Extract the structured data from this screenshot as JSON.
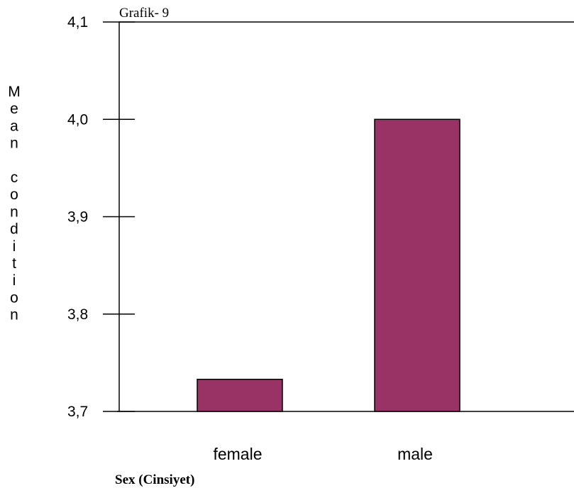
{
  "chart_data": {
    "type": "bar",
    "title": "Grafik- 9",
    "xlabel": "Sex (Cinsiyet)",
    "ylabel": "Mean condition",
    "categories": [
      "female",
      "male"
    ],
    "values": [
      3.733,
      4.0
    ],
    "ylim": [
      3.7,
      4.1
    ],
    "yticks": [
      3.7,
      3.8,
      3.9,
      4.0,
      4.1
    ],
    "ytick_labels": [
      "3,7",
      "3,8",
      "3,9",
      "4,0",
      "4,1"
    ],
    "grid": false,
    "legend": "none",
    "bar_color": "#993366",
    "bar_edge_color": "#000000"
  }
}
